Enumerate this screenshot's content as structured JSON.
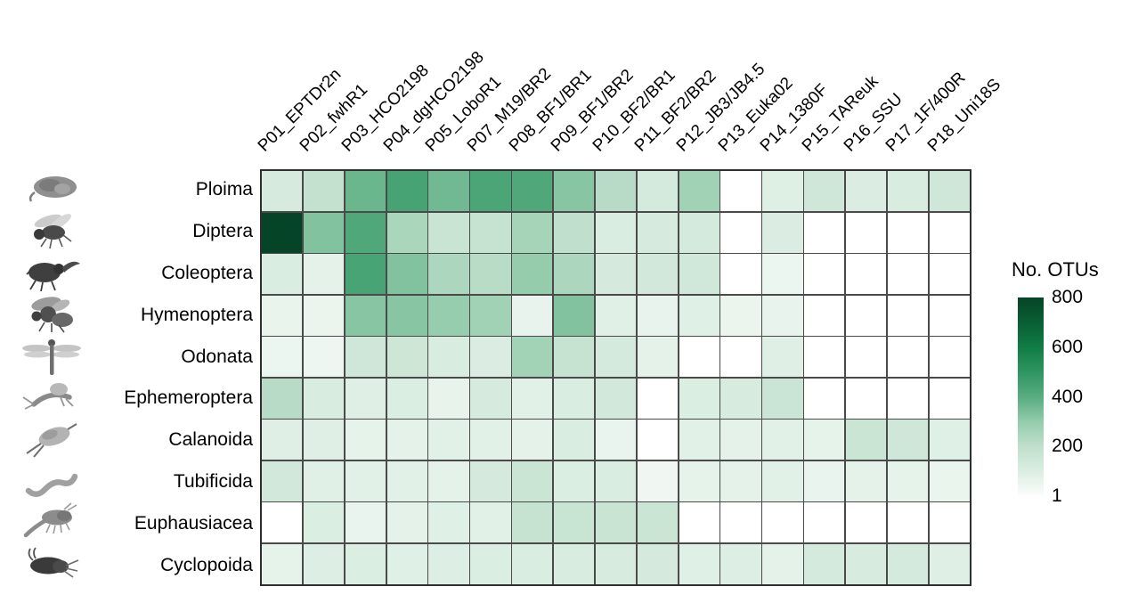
{
  "page": {
    "background": "#ffffff"
  },
  "legend": {
    "title": "No. OTUs",
    "ticks": [
      "800",
      "600",
      "400",
      "200",
      "1"
    ]
  },
  "chart_data": {
    "type": "heatmap",
    "title": "",
    "legend_title": "No. OTUs",
    "legend_position": "right",
    "grid": "on",
    "columns": [
      "P01_EPTDr2n",
      "P02_fwhR1",
      "P03_HCO2198",
      "P04_dgHCO2198",
      "P05_LoboR1",
      "P07_M19/BR2",
      "P08_BF1/BR1",
      "P09_BF1/BR2",
      "P10_BF2/BR1",
      "P11_BF2/BR2",
      "P12_JB3/JB4.5",
      "P13_Euka02",
      "P14_1380F",
      "P15_TAReuk",
      "P16_SSU",
      "P17_1F/400R",
      "P18_Uni18S"
    ],
    "rows": [
      "Ploima",
      "Diptera",
      "Coleoptera",
      "Hymenoptera",
      "Odonata",
      "Ephemeroptera",
      "Calanoida",
      "Tubificida",
      "Euphausiacea",
      "Cyclopoida"
    ],
    "row_icons": [
      "rotifer-icon",
      "fly-icon",
      "beetle-icon",
      "bee-icon",
      "dragonfly-icon",
      "mayfly-icon",
      "calanoid-copepod-icon",
      "worm-icon",
      "krill-icon",
      "cyclopoid-copepod-icon"
    ],
    "values": [
      [
        120,
        185,
        370,
        440,
        360,
        430,
        420,
        320,
        220,
        130,
        270,
        null,
        95,
        150,
        105,
        115,
        150
      ],
      [
        800,
        330,
        420,
        250,
        165,
        180,
        260,
        200,
        110,
        120,
        130,
        null,
        105,
        null,
        null,
        null,
        null
      ],
      [
        110,
        75,
        435,
        330,
        245,
        215,
        300,
        245,
        125,
        138,
        142,
        null,
        50,
        null,
        null,
        null,
        null
      ],
      [
        60,
        55,
        320,
        320,
        295,
        270,
        65,
        330,
        85,
        65,
        90,
        55,
        65,
        null,
        null,
        null,
        null
      ],
      [
        50,
        45,
        150,
        155,
        115,
        105,
        265,
        180,
        130,
        72,
        null,
        null,
        92,
        null,
        null,
        null,
        null
      ],
      [
        220,
        112,
        92,
        103,
        64,
        122,
        83,
        108,
        140,
        null,
        103,
        118,
        163,
        null,
        null,
        null,
        null
      ],
      [
        92,
        92,
        68,
        76,
        80,
        80,
        76,
        108,
        58,
        null,
        80,
        76,
        80,
        68,
        160,
        150,
        90
      ],
      [
        140,
        88,
        80,
        80,
        76,
        126,
        160,
        103,
        108,
        38,
        68,
        76,
        80,
        62,
        72,
        68,
        56
      ],
      [
        null,
        103,
        62,
        76,
        90,
        82,
        180,
        170,
        165,
        160,
        null,
        null,
        null,
        null,
        null,
        null,
        null
      ],
      [
        68,
        96,
        103,
        90,
        96,
        103,
        108,
        114,
        118,
        124,
        90,
        96,
        76,
        128,
        118,
        128,
        92
      ]
    ],
    "scale": {
      "domain": [
        1,
        800
      ],
      "ticks": [
        800,
        600,
        400,
        200,
        1
      ],
      "na_color": "#ffffff",
      "stops": [
        [
          1,
          "#fcfdfc"
        ],
        [
          100,
          "#dceee3"
        ],
        [
          200,
          "#c0dfcc"
        ],
        [
          300,
          "#94ccac"
        ],
        [
          400,
          "#58ac80"
        ],
        [
          500,
          "#2e9561"
        ],
        [
          600,
          "#107c45"
        ],
        [
          700,
          "#0a5e34"
        ],
        [
          800,
          "#054427"
        ]
      ]
    },
    "grid_line_color": "#4a4a4a",
    "border_color": "#2e2e2e"
  }
}
